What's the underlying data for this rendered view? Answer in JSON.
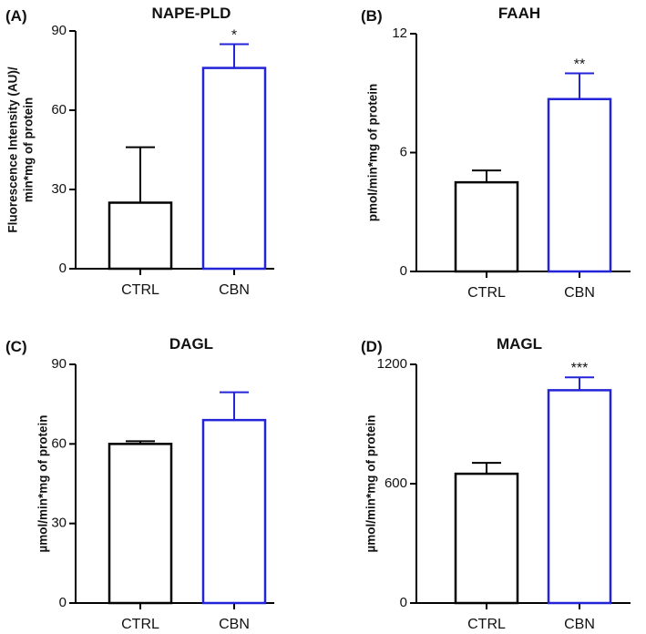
{
  "chart_data": [
    {
      "type": "bar",
      "panel": "(A)",
      "title": "NAPE-PLD",
      "ylabel": [
        "Fluorescence Intensity (AU)/",
        "min*mg of protein"
      ],
      "categories": [
        "CTRL",
        "CBN"
      ],
      "values": [
        25,
        76
      ],
      "errors": [
        21,
        9
      ],
      "significance": [
        "",
        "*"
      ],
      "ylim": [
        0,
        90
      ],
      "yticks": [
        0,
        30,
        60,
        90
      ],
      "bar_colors": [
        "#000000",
        "#2323d8"
      ]
    },
    {
      "type": "bar",
      "panel": "(B)",
      "title": "FAAH",
      "ylabel": [
        "pmol/min*mg of protein"
      ],
      "categories": [
        "CTRL",
        "CBN"
      ],
      "values": [
        4.5,
        8.7
      ],
      "errors": [
        0.6,
        1.3
      ],
      "significance": [
        "",
        "**"
      ],
      "ylim": [
        0,
        12
      ],
      "yticks": [
        0,
        6,
        12
      ],
      "bar_colors": [
        "#000000",
        "#2323d8"
      ]
    },
    {
      "type": "bar",
      "panel": "(C)",
      "title": "DAGL",
      "ylabel": [
        "µmol/min*mg of protein"
      ],
      "categories": [
        "CTRL",
        "CBN"
      ],
      "values": [
        60,
        69
      ],
      "errors": [
        1,
        10.5
      ],
      "significance": [
        "",
        ""
      ],
      "ylim": [
        0,
        90
      ],
      "yticks": [
        0,
        30,
        60,
        90
      ],
      "bar_colors": [
        "#000000",
        "#2323d8"
      ]
    },
    {
      "type": "bar",
      "panel": "(D)",
      "title": "MAGL",
      "ylabel": [
        "µmol/min*mg of protein"
      ],
      "categories": [
        "CTRL",
        "CBN"
      ],
      "values": [
        650,
        1070
      ],
      "errors": [
        55,
        65
      ],
      "significance": [
        "",
        "***"
      ],
      "ylim": [
        0,
        1200
      ],
      "yticks": [
        0,
        600,
        1200
      ],
      "bar_colors": [
        "#000000",
        "#2323d8"
      ]
    }
  ]
}
